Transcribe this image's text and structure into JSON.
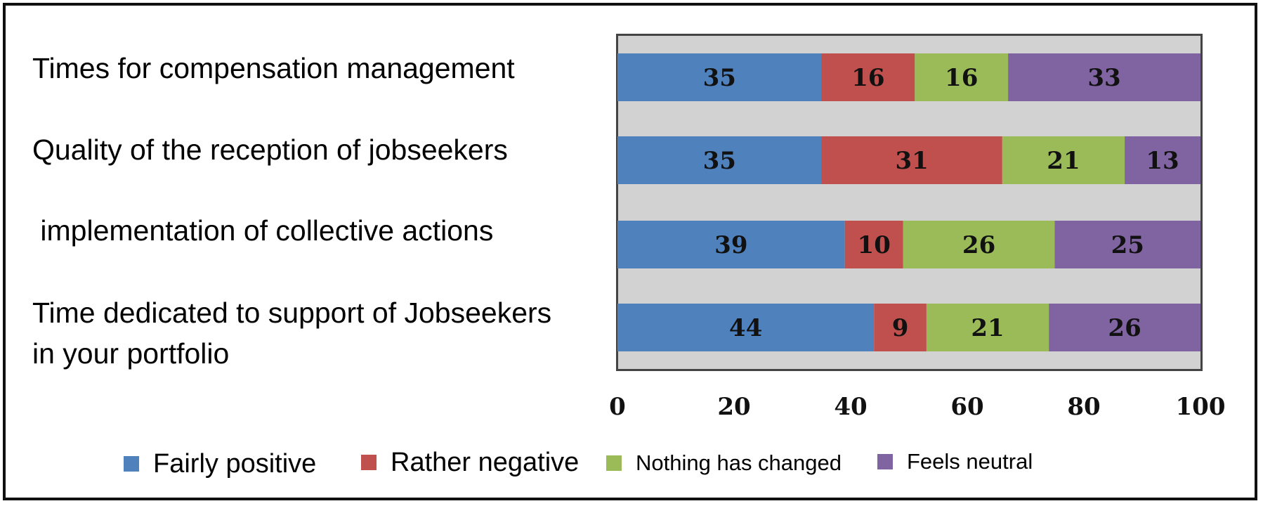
{
  "chart_data": {
    "type": "bar",
    "orientation": "horizontal",
    "stacked": true,
    "categories": [
      "Times for compensation management",
      "Quality of the reception of jobseekers",
      " implementation of collective actions",
      "Time dedicated to support of Jobseekers\nin your portfolio"
    ],
    "series": [
      {
        "name": "Fairly positive",
        "color": "#4f81bd",
        "values": [
          35,
          35,
          39,
          44
        ]
      },
      {
        "name": "Rather negative",
        "color": "#c0504d",
        "values": [
          16,
          31,
          10,
          9
        ]
      },
      {
        "name": "Nothing has changed",
        "color": "#9bbb59",
        "values": [
          16,
          21,
          26,
          21
        ]
      },
      {
        "name": "Feels neutral",
        "color": "#8064a2",
        "values": [
          33,
          13,
          25,
          26
        ]
      }
    ],
    "xlim": [
      0,
      100
    ],
    "x_ticks": [
      0,
      20,
      40,
      60,
      80,
      100
    ],
    "legend_position": "bottom",
    "title": "",
    "xlabel": "",
    "ylabel": ""
  }
}
